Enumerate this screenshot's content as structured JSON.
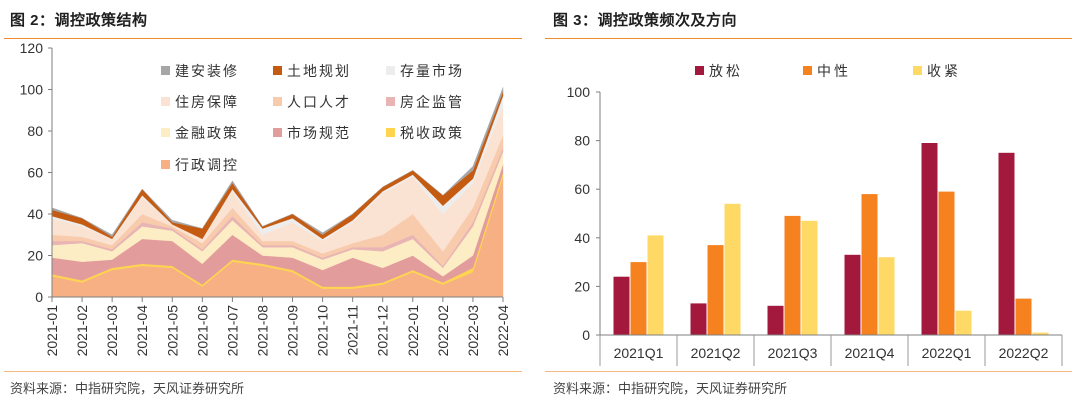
{
  "chart_data": [
    {
      "type": "area",
      "stacked": true,
      "title": "图 2：调控政策结构",
      "source": "资料来源：中指研究院，天风证券研究所",
      "categories": [
        "2021-01",
        "2021-02",
        "2021-03",
        "2021-04",
        "2021-05",
        "2021-06",
        "2021-07",
        "2021-08",
        "2021-09",
        "2021-10",
        "2021-11",
        "2021-12",
        "2022-01",
        "2022-02",
        "2022-03",
        "2022-04"
      ],
      "ylim": [
        0,
        120
      ],
      "yticks": [
        0,
        20,
        40,
        60,
        80,
        100,
        120
      ],
      "grid": false,
      "legend": "inside-top-right",
      "series": [
        {
          "name": "建安装修",
          "color": "#A6A6A6",
          "values": [
            1,
            0,
            1,
            0,
            1,
            0,
            1,
            0,
            0,
            1,
            0,
            0,
            0,
            0,
            2,
            2
          ]
        },
        {
          "name": "土地规划",
          "color": "#C55A11",
          "values": [
            3,
            3,
            1,
            3,
            1,
            5,
            3,
            1,
            2,
            2,
            3,
            2,
            2,
            5,
            4,
            2
          ]
        },
        {
          "name": "存量市场",
          "color": "#EDEDED",
          "values": [
            1,
            1,
            0,
            1,
            0,
            0,
            1,
            3,
            2,
            1,
            1,
            1,
            1,
            4,
            2,
            5
          ]
        },
        {
          "name": "住房保障",
          "color": "#FBE3D3",
          "values": [
            8,
            5,
            3,
            8,
            1,
            2,
            8,
            3,
            9,
            6,
            10,
            20,
            18,
            18,
            12,
            14
          ]
        },
        {
          "name": "人口人才",
          "color": "#F8CBAD",
          "values": [
            3,
            2,
            2,
            4,
            1,
            3,
            4,
            2,
            2,
            2,
            2,
            6,
            10,
            7,
            7,
            6
          ]
        },
        {
          "name": "房企监管",
          "color": "#E8B4B4",
          "values": [
            2,
            1,
            1,
            2,
            1,
            1,
            2,
            1,
            1,
            1,
            1,
            2,
            2,
            1,
            2,
            2
          ]
        },
        {
          "name": "金融政策",
          "color": "#FDEDC4",
          "values": [
            6,
            9,
            4,
            6,
            5,
            6,
            7,
            4,
            5,
            5,
            4,
            8,
            8,
            4,
            14,
            6
          ]
        },
        {
          "name": "市场规范",
          "color": "#E39C9C",
          "values": [
            8,
            9,
            4,
            12,
            12,
            10,
            12,
            4,
            6,
            8,
            14,
            7,
            7,
            3,
            6,
            4
          ]
        },
        {
          "name": "税收政策",
          "color": "#FFD54F",
          "values": [
            1,
            1,
            1,
            1,
            1,
            1,
            1,
            1,
            1,
            1,
            1,
            1,
            1,
            1,
            2,
            2
          ]
        },
        {
          "name": "行政调控",
          "color": "#F6B084",
          "values": [
            10,
            7,
            13,
            15,
            14,
            5,
            17,
            15,
            12,
            4,
            4,
            6,
            12,
            6,
            12,
            58
          ]
        }
      ]
    },
    {
      "type": "bar",
      "title": "图 3：调控政策频次及方向",
      "source": "资料来源：中指研究院，天风证券研究所",
      "categories": [
        "2021Q1",
        "2021Q2",
        "2021Q3",
        "2021Q4",
        "2022Q1",
        "2022Q2"
      ],
      "ylim": [
        0,
        100
      ],
      "yticks": [
        0,
        20,
        40,
        60,
        80,
        100
      ],
      "grid": false,
      "legend": "top",
      "series": [
        {
          "name": "放松",
          "color": "#A3193D",
          "values": [
            24,
            13,
            12,
            33,
            79,
            75
          ]
        },
        {
          "name": "中性",
          "color": "#F5821F",
          "values": [
            30,
            37,
            49,
            58,
            59,
            15
          ]
        },
        {
          "name": "收紧",
          "color": "#FFD966",
          "values": [
            41,
            54,
            47,
            32,
            10,
            1
          ]
        }
      ]
    }
  ]
}
